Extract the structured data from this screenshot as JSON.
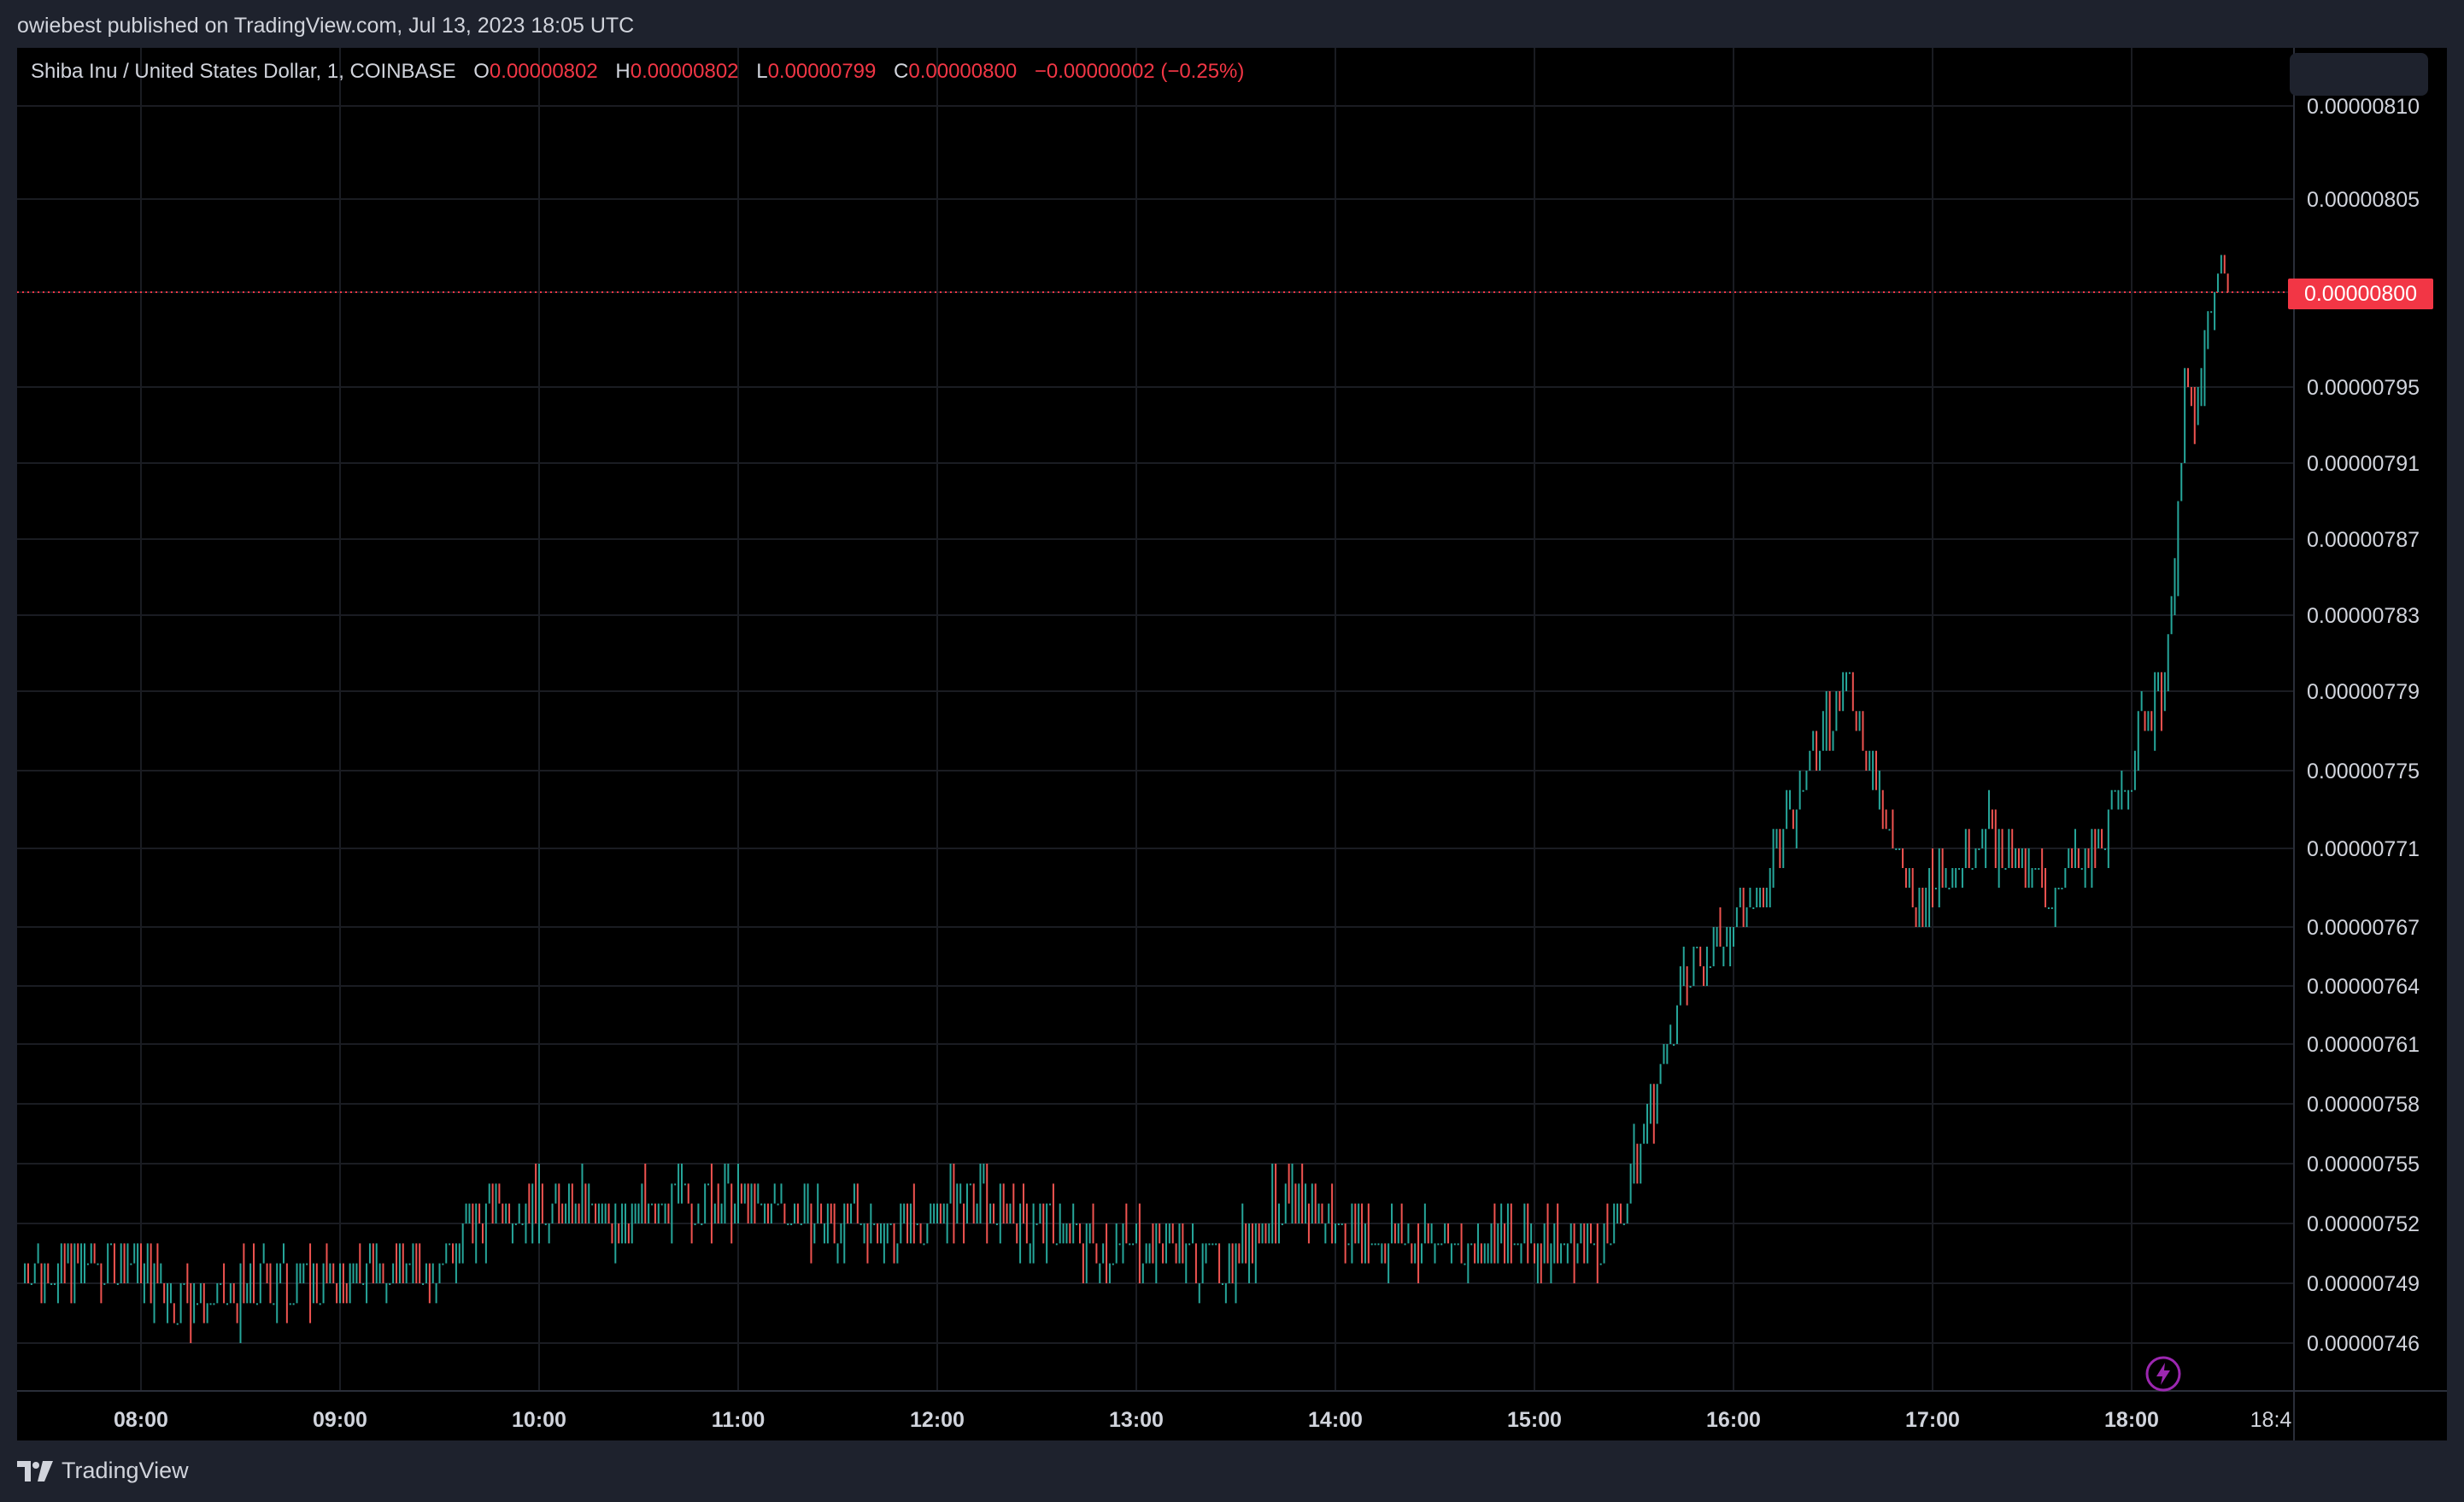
{
  "header": {
    "published_note": "owiebest published on TradingView.com, Jul 13, 2023 18:05 UTC"
  },
  "legend": {
    "symbol": "Shiba Inu / United States Dollar, 1, COINBASE",
    "o_key": "O",
    "o": "0.00000802",
    "h_key": "H",
    "h": "0.00000802",
    "l_key": "L",
    "l": "0.00000799",
    "c_key": "C",
    "c": "0.00000800",
    "change": "−0.00000002 (−0.25%)"
  },
  "last_price_badge": "0.00000800",
  "footer": {
    "brand": "TradingView"
  },
  "icons": {
    "brand_logo": "tradingview-logo-icon",
    "bolt": "lightning-bolt-icon"
  },
  "colors": {
    "up": "#26a69a",
    "down": "#ef5350",
    "last_price": "#f23645",
    "background": "#000000"
  },
  "chart_data": {
    "type": "bar",
    "style": "ohlc",
    "title": "",
    "xlabel": "",
    "ylabel": "",
    "y_ticks": [
      "0.00000810",
      "0.00000805",
      "0.00000800",
      "0.00000795",
      "0.00000791",
      "0.00000787",
      "0.00000783",
      "0.00000779",
      "0.00000775",
      "0.00000771",
      "0.00000767",
      "0.00000764",
      "0.00000761",
      "0.00000758",
      "0.00000755",
      "0.00000752",
      "0.00000749",
      "0.00000746"
    ],
    "x_ticks": [
      "08:00",
      "09:00",
      "10:00",
      "11:00",
      "12:00",
      "13:00",
      "14:00",
      "15:00",
      "16:00",
      "17:00",
      "18:00",
      "18:4"
    ],
    "last_price": 8e-06,
    "grid": true,
    "path_points": [
      [
        "07:25",
        7.5e-06
      ],
      [
        "08:00",
        7.5e-06
      ],
      [
        "08:10",
        7.48e-06
      ],
      [
        "08:25",
        7.48e-06
      ],
      [
        "08:40",
        7.49e-06
      ],
      [
        "09:00",
        7.49e-06
      ],
      [
        "09:15",
        7.5e-06
      ],
      [
        "09:30",
        7.5e-06
      ],
      [
        "09:40",
        7.52e-06
      ],
      [
        "09:50",
        7.53e-06
      ],
      [
        "10:05",
        7.53e-06
      ],
      [
        "10:20",
        7.52e-06
      ],
      [
        "10:40",
        7.53e-06
      ],
      [
        "11:00",
        7.53e-06
      ],
      [
        "11:30",
        7.52e-06
      ],
      [
        "11:50",
        7.52e-06
      ],
      [
        "12:10",
        7.53e-06
      ],
      [
        "12:30",
        7.52e-06
      ],
      [
        "12:50",
        7.51e-06
      ],
      [
        "13:10",
        7.51e-06
      ],
      [
        "13:25",
        7.5e-06
      ],
      [
        "13:45",
        7.53e-06
      ],
      [
        "14:00",
        7.52e-06
      ],
      [
        "14:20",
        7.51e-06
      ],
      [
        "14:50",
        7.51e-06
      ],
      [
        "15:20",
        7.51e-06
      ],
      [
        "15:25",
        7.52e-06
      ],
      [
        "15:30",
        7.55e-06
      ],
      [
        "15:35",
        7.58e-06
      ],
      [
        "15:40",
        7.61e-06
      ],
      [
        "15:45",
        7.64e-06
      ],
      [
        "15:55",
        7.66e-06
      ],
      [
        "16:05",
        7.68e-06
      ],
      [
        "16:15",
        7.71e-06
      ],
      [
        "16:22",
        7.75e-06
      ],
      [
        "16:28",
        7.78e-06
      ],
      [
        "16:35",
        7.79e-06
      ],
      [
        "16:40",
        7.76e-06
      ],
      [
        "16:45",
        7.73e-06
      ],
      [
        "16:50",
        7.7e-06
      ],
      [
        "16:55",
        7.68e-06
      ],
      [
        "17:05",
        7.7e-06
      ],
      [
        "17:15",
        7.72e-06
      ],
      [
        "17:25",
        7.7e-06
      ],
      [
        "17:35",
        7.69e-06
      ],
      [
        "17:45",
        7.7e-06
      ],
      [
        "17:55",
        7.73e-06
      ],
      [
        "18:05",
        7.78e-06
      ],
      [
        "18:10",
        7.8e-06
      ],
      [
        "18:13",
        7.85e-06
      ],
      [
        "18:16",
        7.95e-06
      ],
      [
        "18:19",
        7.93e-06
      ],
      [
        "18:22",
        7.97e-06
      ],
      [
        "18:25",
        8e-06
      ],
      [
        "18:27",
        8.03e-06
      ],
      [
        "18:29",
        8e-06
      ]
    ]
  }
}
